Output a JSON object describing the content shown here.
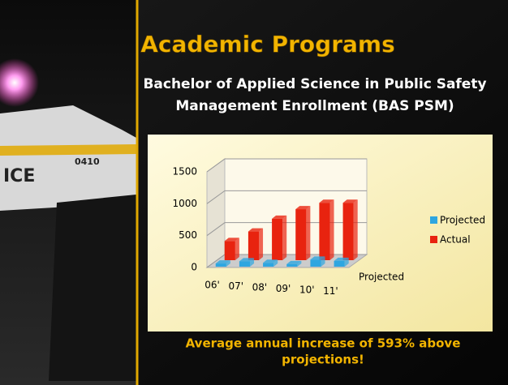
{
  "slide": {
    "title": "Academic Programs",
    "subtitle_lines": [
      "Bachelor of Applied Science in Public Safety",
      "Management Enrollment  (BAS PSM)"
    ],
    "footer_lines": [
      "Average annual increase of 593% above",
      "projections!"
    ]
  },
  "photo": {
    "texts": [
      "ICE",
      "0410"
    ]
  },
  "chart_data": {
    "type": "bar3d",
    "categories": [
      "06'",
      "07'",
      "08'",
      "09'",
      "10'",
      "11'"
    ],
    "depth_label": "Projected",
    "series": [
      {
        "name": "Projected",
        "color": "#2ea6e0",
        "values": [
          50,
          85,
          60,
          40,
          110,
          90
        ]
      },
      {
        "name": "Actual",
        "color": "#e8230f",
        "values": [
          300,
          450,
          650,
          800,
          900,
          900
        ]
      }
    ],
    "ylim": [
      0,
      1500
    ],
    "yticks": [
      0,
      500,
      1000,
      1500
    ],
    "grid": true,
    "legend": "right"
  }
}
